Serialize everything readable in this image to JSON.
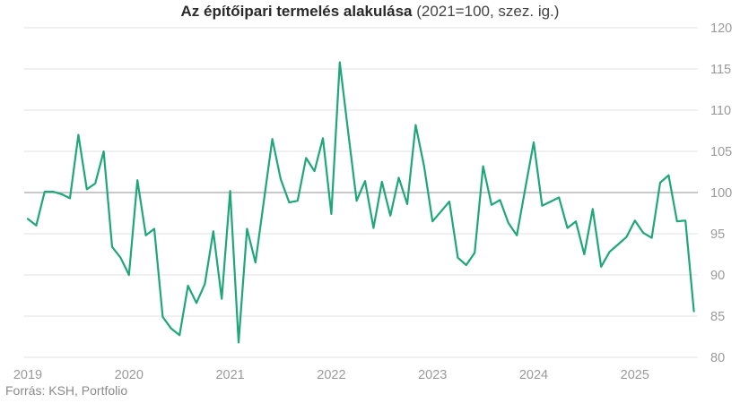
{
  "title": {
    "bold": "Az építőipari termelés alakulása",
    "regular": " (2021=100, szez. ig.)"
  },
  "source": "Forrás: KSH, Portfolio",
  "colors": {
    "line": "#1fa67a",
    "grid": "#e6e6e6",
    "baseline": "#b5b5b5",
    "labels": "#9a9a9a"
  },
  "chart_data": {
    "type": "line",
    "title": "Az építőipari termelés alakulása (2021=100, szez. ig.)",
    "xlabel": "",
    "ylabel": "",
    "ylim": [
      80,
      120
    ],
    "yticks": [
      80,
      85,
      90,
      95,
      100,
      105,
      110,
      115,
      120
    ],
    "y_axis_position": "right",
    "grid": true,
    "highlight_line": 100,
    "xtick_labels": [
      "2019",
      "2020",
      "2021",
      "2022",
      "2023",
      "2024",
      "2025"
    ],
    "x_start": "2019-01",
    "x_end": "2025-08",
    "frequency": "monthly",
    "series": [
      {
        "name": "Építőipari termelés (2021=100)",
        "values": [
          96.8,
          96.0,
          100.1,
          100.1,
          99.8,
          99.3,
          107.0,
          100.4,
          101.1,
          105.0,
          93.4,
          92.1,
          90.0,
          101.5,
          94.8,
          95.6,
          84.9,
          83.5,
          82.7,
          88.7,
          86.6,
          88.9,
          95.3,
          87.1,
          100.2,
          81.8,
          95.6,
          91.5,
          99.0,
          106.5,
          101.6,
          98.8,
          99.0,
          104.2,
          102.6,
          106.6,
          97.4,
          115.8,
          107.3,
          99.0,
          101.4,
          95.7,
          101.3,
          97.2,
          101.8,
          98.6,
          108.2,
          103.2,
          96.5,
          97.7,
          98.9,
          92.1,
          91.2,
          92.7,
          103.2,
          98.5,
          99.1,
          96.3,
          94.8,
          100.5,
          106.1,
          98.4,
          98.9,
          99.4,
          95.7,
          96.5,
          92.5,
          98.0,
          91.0,
          92.8,
          93.7,
          94.6,
          96.6,
          95.1,
          94.5,
          101.2,
          102.1,
          96.5,
          96.6,
          85.6
        ]
      }
    ],
    "legend": "none"
  }
}
